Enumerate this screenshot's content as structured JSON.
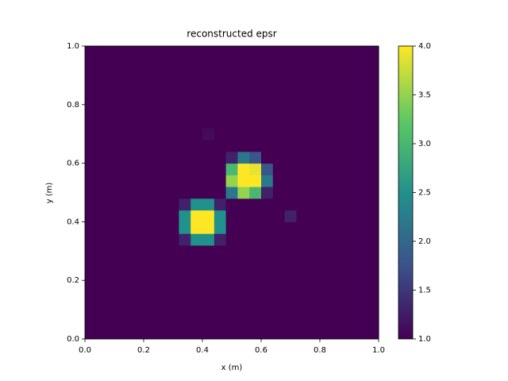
{
  "chart_data": {
    "type": "heatmap",
    "title": "reconstructed epsr",
    "x_label": "x (m)",
    "y_label": "y (m)",
    "colormap": "viridis",
    "xlim": [
      0,
      1
    ],
    "ylim": [
      0,
      1
    ],
    "xticks": [
      {
        "value": 0,
        "label": "0.0"
      },
      0.2,
      0.4,
      0.6,
      0.8,
      {
        "value": 1,
        "label": "1.0"
      }
    ],
    "yticks": [
      {
        "value": 0,
        "label": "0.0"
      },
      0.2,
      0.4,
      0.6,
      0.8,
      {
        "value": 1,
        "label": "1.0"
      }
    ],
    "clim": [
      1,
      4
    ],
    "cticks": [
      {
        "value": 1,
        "label": "1.0"
      },
      1.5,
      {
        "value": 2,
        "label": "2.0"
      },
      2.5,
      {
        "value": 3,
        "label": "3.0"
      },
      3.5,
      {
        "value": 4,
        "label": "4.0"
      }
    ],
    "z": [
      [
        1,
        1,
        1,
        1,
        1,
        1,
        1,
        1,
        1,
        1,
        1,
        1,
        1,
        1,
        1,
        1,
        1,
        1,
        1,
        1,
        1,
        1,
        1,
        1,
        1
      ],
      [
        1,
        1,
        1,
        1,
        1,
        1,
        1,
        1,
        1,
        1,
        1,
        1,
        1,
        1,
        1,
        1,
        1,
        1,
        1,
        1,
        1,
        1,
        1,
        1,
        1
      ],
      [
        1,
        1,
        1,
        1,
        1,
        1,
        1,
        1,
        1,
        1,
        1,
        1,
        1,
        1,
        1,
        1,
        1,
        1,
        1,
        1,
        1,
        1,
        1,
        1,
        1
      ],
      [
        1,
        1,
        1,
        1,
        1,
        1,
        1,
        1,
        1,
        1,
        1,
        1,
        1,
        1,
        1,
        1,
        1,
        1,
        1,
        1,
        1,
        1,
        1,
        1,
        1
      ],
      [
        1,
        1,
        1,
        1,
        1,
        1,
        1,
        1,
        1,
        1,
        1,
        1,
        1,
        1,
        1,
        1,
        1,
        1,
        1,
        1,
        1,
        1,
        1,
        1,
        1
      ],
      [
        1,
        1,
        1,
        1,
        1,
        1,
        1,
        1,
        1,
        1,
        1,
        1,
        1,
        1,
        1,
        1,
        1,
        1,
        1,
        1,
        1,
        1,
        1,
        1,
        1
      ],
      [
        1,
        1,
        1,
        1,
        1,
        1,
        1,
        1,
        1,
        1,
        1,
        1,
        1,
        1,
        1,
        1,
        1,
        1,
        1,
        1,
        1,
        1,
        1,
        1,
        1
      ],
      [
        1,
        1,
        1,
        1,
        1,
        1,
        1,
        1,
        1,
        1,
        1,
        1,
        1,
        1,
        1,
        1,
        1,
        1,
        1,
        1,
        1,
        1,
        1,
        1,
        1
      ],
      [
        1,
        1,
        1,
        1,
        1,
        1,
        1,
        1,
        1.3,
        2.5,
        2.5,
        1.3,
        1,
        1,
        1,
        1,
        1,
        1,
        1,
        1,
        1,
        1,
        1,
        1,
        1
      ],
      [
        1,
        1,
        1,
        1,
        1,
        1,
        1,
        1,
        2.5,
        4,
        4,
        2.5,
        1,
        1,
        1,
        1,
        1,
        1,
        1,
        1,
        1,
        1,
        1,
        1,
        1
      ],
      [
        1,
        1,
        1,
        1,
        1,
        1,
        1,
        1,
        2.5,
        4,
        4,
        2.5,
        1,
        1,
        1,
        1,
        1,
        1.3,
        1,
        1,
        1,
        1,
        1,
        1,
        1
      ],
      [
        1,
        1,
        1,
        1,
        1,
        1,
        1,
        1,
        1.3,
        2.5,
        2.5,
        1.3,
        1,
        1,
        1,
        1,
        1,
        1,
        1,
        1,
        1,
        1,
        1,
        1,
        1
      ],
      [
        1,
        1,
        1,
        1,
        1,
        1,
        1,
        1,
        1,
        1,
        1,
        1,
        2.2,
        3.5,
        3,
        1.3,
        1,
        1,
        1,
        1,
        1,
        1,
        1,
        1,
        1
      ],
      [
        1,
        1,
        1,
        1,
        1,
        1,
        1,
        1,
        1,
        1,
        1,
        1,
        3.5,
        4,
        4,
        2.2,
        1,
        1,
        1,
        1,
        1,
        1,
        1,
        1,
        1
      ],
      [
        1,
        1,
        1,
        1,
        1,
        1,
        1,
        1,
        1,
        1,
        1,
        1,
        3,
        4,
        3.9,
        1.8,
        1,
        1,
        1,
        1,
        1,
        1,
        1,
        1,
        1
      ],
      [
        1,
        1,
        1,
        1,
        1,
        1,
        1,
        1,
        1,
        1,
        1,
        1,
        1.3,
        2.2,
        1.8,
        1,
        1,
        1,
        1,
        1,
        1,
        1,
        1,
        1,
        1
      ],
      [
        1,
        1,
        1,
        1,
        1,
        1,
        1,
        1,
        1,
        1,
        1,
        1,
        1,
        1,
        1,
        1,
        1,
        1,
        1,
        1,
        1,
        1,
        1,
        1,
        1
      ],
      [
        1,
        1,
        1,
        1,
        1,
        1,
        1,
        1,
        1,
        1,
        1.1,
        1,
        1,
        1,
        1,
        1,
        1,
        1,
        1,
        1,
        1,
        1,
        1,
        1,
        1
      ],
      [
        1,
        1,
        1,
        1,
        1,
        1,
        1,
        1,
        1,
        1,
        1,
        1,
        1,
        1,
        1,
        1,
        1,
        1,
        1,
        1,
        1,
        1,
        1,
        1,
        1
      ],
      [
        1,
        1,
        1,
        1,
        1,
        1,
        1,
        1,
        1,
        1,
        1,
        1,
        1,
        1,
        1,
        1,
        1,
        1,
        1,
        1,
        1,
        1,
        1,
        1,
        1
      ],
      [
        1,
        1,
        1,
        1,
        1,
        1,
        1,
        1,
        1,
        1,
        1,
        1,
        1,
        1,
        1,
        1,
        1,
        1,
        1,
        1,
        1,
        1,
        1,
        1,
        1
      ],
      [
        1,
        1,
        1,
        1,
        1,
        1,
        1,
        1,
        1,
        1,
        1,
        1,
        1,
        1,
        1,
        1,
        1,
        1,
        1,
        1,
        1,
        1,
        1,
        1,
        1
      ],
      [
        1,
        1,
        1,
        1,
        1,
        1,
        1,
        1,
        1,
        1,
        1,
        1,
        1,
        1,
        1,
        1,
        1,
        1,
        1,
        1,
        1,
        1,
        1,
        1,
        1
      ],
      [
        1,
        1,
        1,
        1,
        1,
        1,
        1,
        1,
        1,
        1,
        1,
        1,
        1,
        1,
        1,
        1,
        1,
        1,
        1,
        1,
        1,
        1,
        1,
        1,
        1
      ],
      [
        1,
        1,
        1,
        1,
        1,
        1,
        1,
        1,
        1,
        1,
        1,
        1,
        1,
        1,
        1,
        1,
        1,
        1,
        1,
        1,
        1,
        1,
        1,
        1,
        1
      ]
    ]
  }
}
